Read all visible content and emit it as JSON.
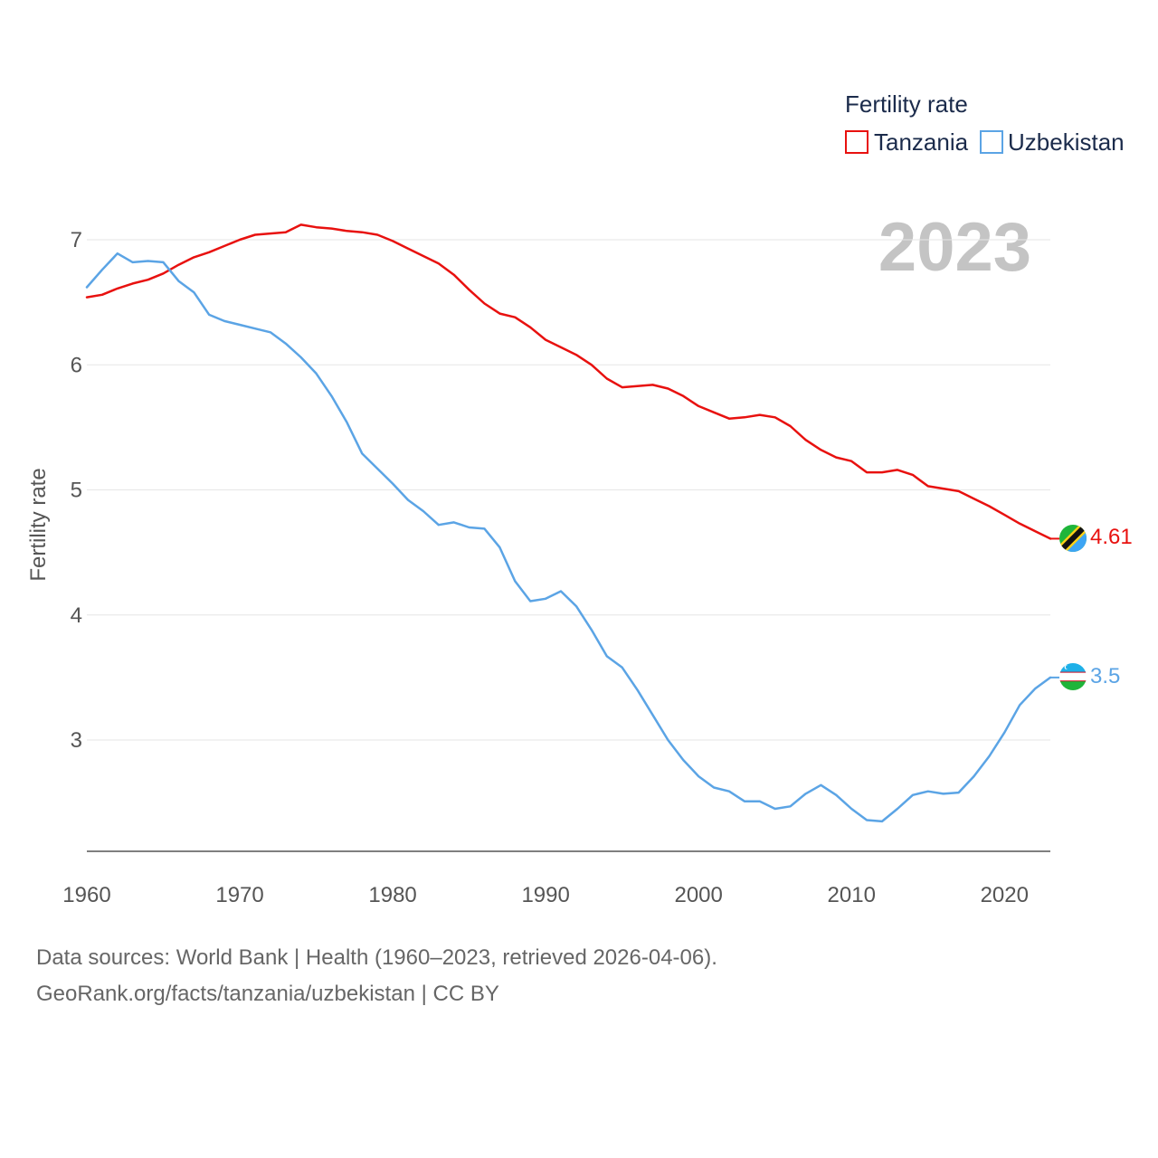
{
  "chart_data": {
    "type": "line",
    "legend_title": "Fertility rate",
    "ylabel": "Fertility rate",
    "xlabel": "",
    "current_year_label": "2023",
    "x_tick_labels": [
      "1960",
      "1970",
      "1980",
      "1990",
      "2000",
      "2010",
      "2020"
    ],
    "y_tick_labels": [
      "7",
      "6",
      "5",
      "4",
      "3"
    ],
    "xlim": [
      1960,
      2023
    ],
    "ylim": [
      2.1,
      7.3
    ],
    "grid": true,
    "legend_position": "top-right",
    "years": [
      1960,
      1961,
      1962,
      1963,
      1964,
      1965,
      1966,
      1967,
      1968,
      1969,
      1970,
      1971,
      1972,
      1973,
      1974,
      1975,
      1976,
      1977,
      1978,
      1979,
      1980,
      1981,
      1982,
      1983,
      1984,
      1985,
      1986,
      1987,
      1988,
      1989,
      1990,
      1991,
      1992,
      1993,
      1994,
      1995,
      1996,
      1997,
      1998,
      1999,
      2000,
      2001,
      2002,
      2003,
      2004,
      2005,
      2006,
      2007,
      2008,
      2009,
      2010,
      2011,
      2012,
      2013,
      2014,
      2015,
      2016,
      2017,
      2018,
      2019,
      2020,
      2021,
      2022,
      2023
    ],
    "series": [
      {
        "name": "Tanzania",
        "color": "#e8110f",
        "end_value_label": "4.61",
        "flag": "tanzania-flag",
        "values": [
          6.54,
          6.56,
          6.61,
          6.65,
          6.68,
          6.73,
          6.8,
          6.86,
          6.9,
          6.95,
          7.0,
          7.04,
          7.05,
          7.06,
          7.12,
          7.1,
          7.09,
          7.07,
          7.06,
          7.04,
          6.99,
          6.93,
          6.87,
          6.81,
          6.72,
          6.6,
          6.49,
          6.41,
          6.38,
          6.3,
          6.2,
          6.14,
          6.08,
          6.0,
          5.89,
          5.82,
          5.83,
          5.84,
          5.81,
          5.75,
          5.67,
          5.62,
          5.57,
          5.58,
          5.6,
          5.58,
          5.51,
          5.4,
          5.32,
          5.26,
          5.23,
          5.14,
          5.14,
          5.16,
          5.12,
          5.03,
          5.01,
          4.99,
          4.93,
          4.87,
          4.8,
          4.73,
          4.67,
          4.61
        ]
      },
      {
        "name": "Uzbekistan",
        "color": "#5ba4e5",
        "end_value_label": "3.5",
        "flag": "uzbekistan-flag",
        "values": [
          6.62,
          6.76,
          6.89,
          6.82,
          6.83,
          6.82,
          6.67,
          6.58,
          6.4,
          6.35,
          6.32,
          6.29,
          6.26,
          6.17,
          6.06,
          5.93,
          5.75,
          5.54,
          5.29,
          5.17,
          5.05,
          4.92,
          4.83,
          4.72,
          4.74,
          4.7,
          4.69,
          4.54,
          4.27,
          4.11,
          4.13,
          4.19,
          4.07,
          3.88,
          3.67,
          3.58,
          3.4,
          3.2,
          3.0,
          2.84,
          2.71,
          2.62,
          2.59,
          2.51,
          2.51,
          2.45,
          2.47,
          2.57,
          2.64,
          2.56,
          2.45,
          2.36,
          2.35,
          2.45,
          2.56,
          2.59,
          2.57,
          2.58,
          2.71,
          2.87,
          3.06,
          3.28,
          3.41,
          3.5
        ]
      }
    ]
  },
  "footer": {
    "sources": "Data sources: World Bank | Health (1960–2023, retrieved 2026-04-06).",
    "url_license": "GeoRank.org/facts/tanzania/uzbekistan | CC BY"
  }
}
